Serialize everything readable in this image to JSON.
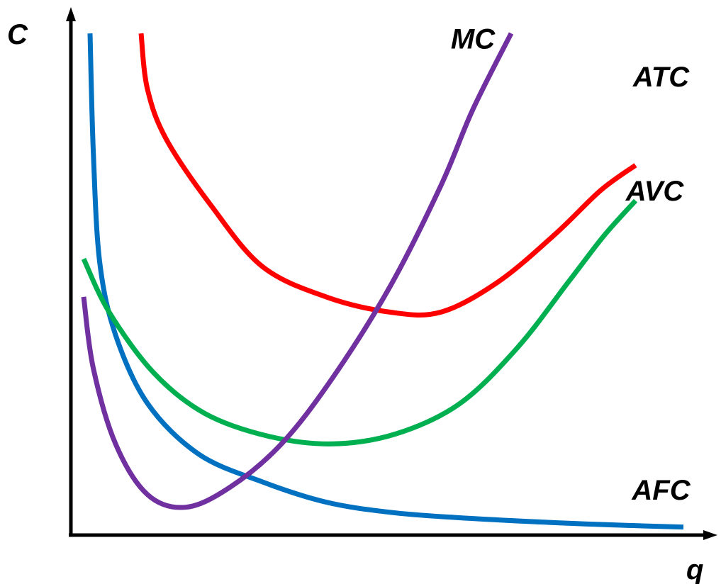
{
  "chart_data": {
    "type": "line",
    "title": "",
    "xlabel": "q",
    "ylabel": "C",
    "grid": false,
    "legend": "none",
    "xlim": [
      0,
      10
    ],
    "ylim": [
      0,
      10
    ],
    "series": [
      {
        "name": "MC",
        "color": "#7030A0",
        "label_at": [
          6.3,
          9.6
        ],
        "points": [
          [
            0.2,
            4.7
          ],
          [
            0.35,
            3.3
          ],
          [
            0.7,
            1.8
          ],
          [
            1.2,
            0.8
          ],
          [
            1.8,
            0.55
          ],
          [
            2.5,
            0.95
          ],
          [
            3.3,
            1.8
          ],
          [
            4.1,
            3.1
          ],
          [
            5.0,
            4.9
          ],
          [
            5.8,
            6.9
          ],
          [
            6.3,
            8.4
          ],
          [
            6.9,
            9.9
          ]
        ]
      },
      {
        "name": "ATC",
        "color": "#FF0000",
        "label_at": [
          9.25,
          8.85
        ],
        "points": [
          [
            1.1,
            9.9
          ],
          [
            1.2,
            8.8
          ],
          [
            1.5,
            7.8
          ],
          [
            2.2,
            6.5
          ],
          [
            3.0,
            5.3
          ],
          [
            4.0,
            4.7
          ],
          [
            5.0,
            4.4
          ],
          [
            5.8,
            4.4
          ],
          [
            6.7,
            5.0
          ],
          [
            7.6,
            5.95
          ],
          [
            8.3,
            6.8
          ],
          [
            8.85,
            7.3
          ]
        ]
      },
      {
        "name": "AVC",
        "color": "#00B050",
        "label_at": [
          9.15,
          6.6
        ],
        "points": [
          [
            0.2,
            5.45
          ],
          [
            0.6,
            4.4
          ],
          [
            1.3,
            3.2
          ],
          [
            2.1,
            2.4
          ],
          [
            3.1,
            1.95
          ],
          [
            4.1,
            1.8
          ],
          [
            5.1,
            2.0
          ],
          [
            6.1,
            2.6
          ],
          [
            7.0,
            3.7
          ],
          [
            7.8,
            5.0
          ],
          [
            8.35,
            5.9
          ],
          [
            8.85,
            6.6
          ]
        ]
      },
      {
        "name": "AFC",
        "color": "#0070C0",
        "label_at": [
          9.25,
          0.7
        ],
        "points": [
          [
            0.3,
            9.9
          ],
          [
            0.35,
            7.6
          ],
          [
            0.45,
            5.4
          ],
          [
            0.7,
            3.95
          ],
          [
            1.2,
            2.6
          ],
          [
            2.0,
            1.6
          ],
          [
            3.0,
            1.05
          ],
          [
            4.0,
            0.65
          ],
          [
            5.0,
            0.45
          ],
          [
            6.0,
            0.35
          ],
          [
            7.5,
            0.25
          ],
          [
            9.0,
            0.18
          ],
          [
            9.6,
            0.16
          ]
        ]
      }
    ]
  }
}
